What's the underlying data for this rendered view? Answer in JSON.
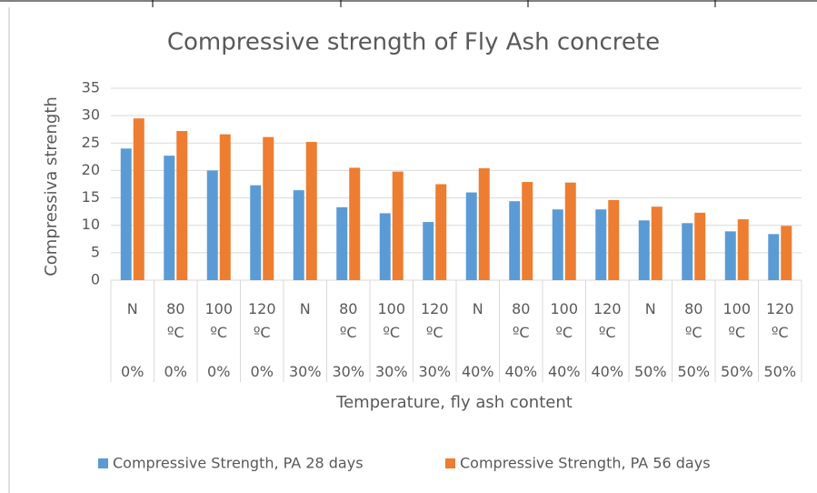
{
  "chart_data": {
    "type": "bar",
    "title": "Compressive strength of Fly Ash concrete",
    "x_label": "Temperature, fly ash content",
    "y_label": "Compressiva strength",
    "categories": [
      "N",
      "80 ºC",
      "100 ºC",
      "120 ºC",
      "N",
      "80 ºC",
      "100 ºC",
      "120 ºC",
      "N",
      "80 ºC",
      "100 ºC",
      "120 ºC",
      "N",
      "80 ºC",
      "100 ºC",
      "120 ºC"
    ],
    "category_groups": [
      "0%",
      "0%",
      "0%",
      "0%",
      "30%",
      "30%",
      "30%",
      "30%",
      "40%",
      "40%",
      "40%",
      "40%",
      "50%",
      "50%",
      "50%",
      "50%"
    ],
    "series": [
      {
        "name": "Compressive Strength, PA 28 days",
        "color": "#5b9bd5",
        "values": [
          24,
          22.7,
          20,
          17.3,
          16.4,
          13.3,
          12.2,
          10.6,
          16,
          14.4,
          12.9,
          12.9,
          10.9,
          10.4,
          8.9,
          8.4
        ]
      },
      {
        "name": "Compressive Strength, PA 56 days",
        "color": "#ed7d31",
        "values": [
          29.5,
          27.2,
          26.6,
          26.1,
          25.2,
          20.5,
          19.8,
          17.5,
          20.4,
          17.9,
          17.8,
          14.6,
          13.4,
          12.3,
          11.1,
          9.9
        ]
      }
    ],
    "ylim": [
      0,
      35
    ],
    "yticks": [
      0,
      5,
      10,
      15,
      20,
      25,
      30,
      35
    ],
    "grid": true,
    "legend": "bottom"
  }
}
